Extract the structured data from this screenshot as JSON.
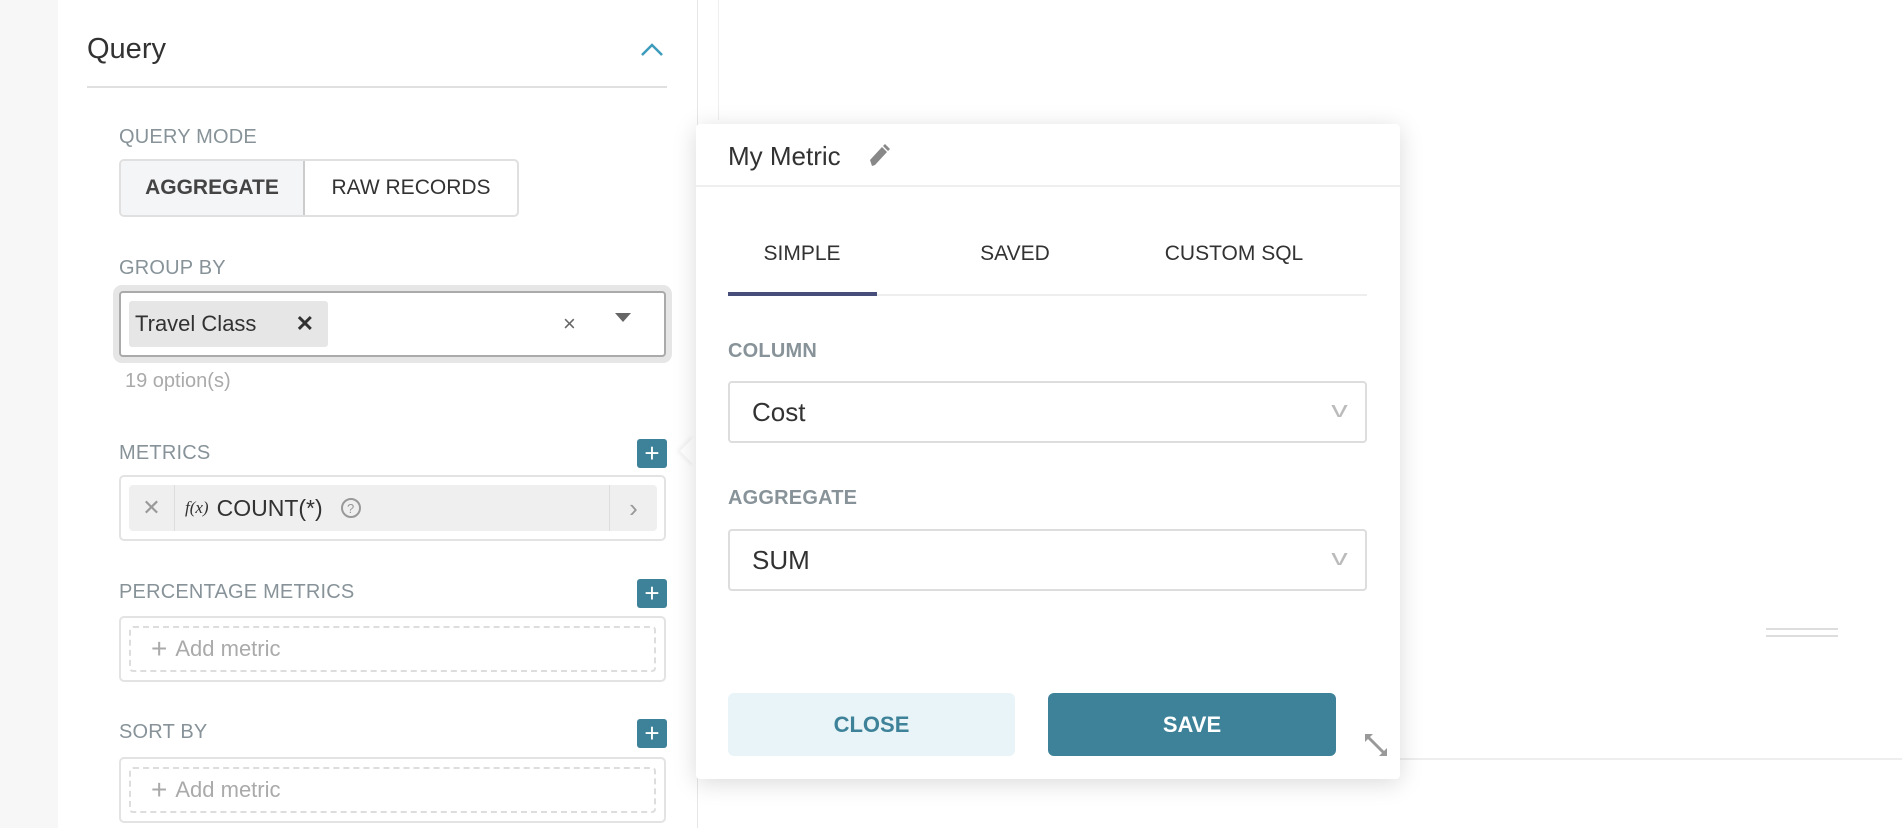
{
  "query": {
    "title": "Query",
    "collapse_icon": "chevron-up-icon",
    "query_mode": {
      "label": "QUERY MODE",
      "options": [
        "AGGREGATE",
        "RAW RECORDS"
      ],
      "selected": "AGGREGATE"
    },
    "group_by": {
      "label": "GROUP BY",
      "chips": [
        "Travel Class"
      ],
      "options_count": "19 option(s)"
    },
    "metrics": {
      "label": "METRICS",
      "items": [
        {
          "prefix": "f(x)",
          "label": "COUNT(*)"
        }
      ]
    },
    "percentage_metrics": {
      "label": "PERCENTAGE METRICS",
      "placeholder": "Add metric"
    },
    "sort_by": {
      "label": "SORT BY",
      "placeholder": "Add metric"
    }
  },
  "popover": {
    "title": "My Metric",
    "tabs": [
      "SIMPLE",
      "SAVED",
      "CUSTOM SQL"
    ],
    "active_tab": "SIMPLE",
    "column": {
      "label": "COLUMN",
      "value": "Cost"
    },
    "aggregate": {
      "label": "AGGREGATE",
      "value": "SUM"
    },
    "close_label": "CLOSE",
    "save_label": "SAVE"
  },
  "colors": {
    "accent": "#3d8299",
    "close_bg": "#e8f4f7",
    "tab_underline": "#484e7a"
  }
}
